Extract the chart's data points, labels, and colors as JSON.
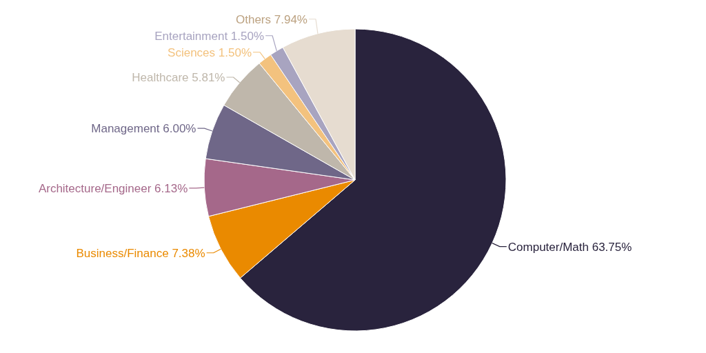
{
  "chart_data": {
    "type": "pie",
    "categories": [
      "Computer/Math",
      "Business/Finance",
      "Architecture/Engineer",
      "Management",
      "Healthcare",
      "Sciences",
      "Entertainment",
      "Others"
    ],
    "values": [
      63.75,
      7.38,
      6.13,
      6.0,
      5.81,
      1.5,
      1.5,
      7.94
    ],
    "colors": [
      "#29233d",
      "#ea8a00",
      "#a5688a",
      "#6f6788",
      "#bfb7ab",
      "#f3c27e",
      "#a8a4c0",
      "#e6dcd0"
    ],
    "value_labels": [
      "63.75%",
      "7.38%",
      "6.13%",
      "6.00%",
      "5.81%",
      "1.50%",
      "1.50%",
      "7.94%"
    ]
  }
}
